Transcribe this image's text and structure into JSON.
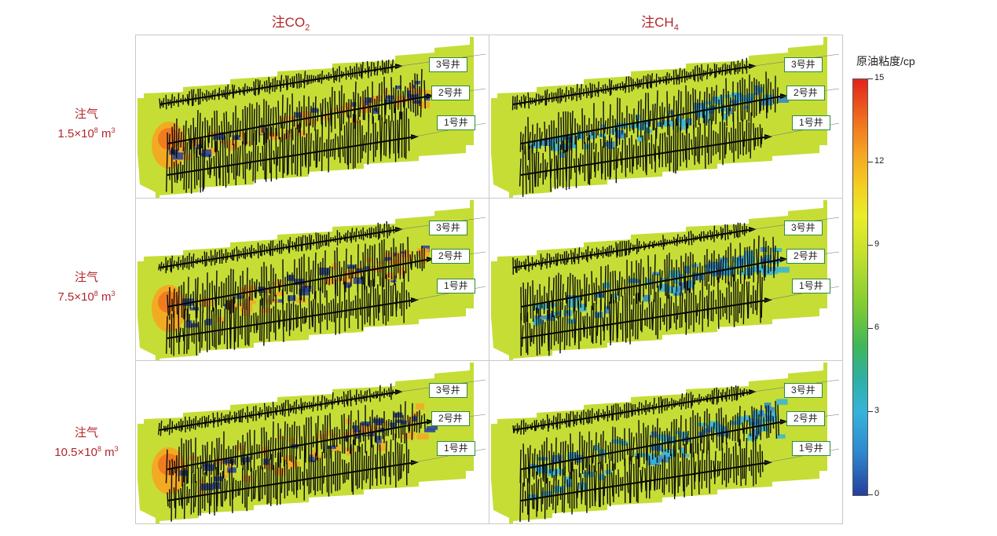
{
  "columns": [
    {
      "label": "注CO",
      "sub": "2"
    },
    {
      "label": "注CH",
      "sub": "4"
    }
  ],
  "rows": [
    {
      "line1": "注气",
      "coef": "1.5×10",
      "exp1": "8",
      "unit": " m",
      "exp2": "3"
    },
    {
      "line1": "注气",
      "coef": "7.5×10",
      "exp1": "8",
      "unit": " m",
      "exp2": "3"
    },
    {
      "line1": "注气",
      "coef": "10.5×10",
      "exp1": "8",
      "unit": " m",
      "exp2": "3"
    }
  ],
  "wells": [
    "3号井",
    "2号井",
    "1号井"
  ],
  "colorbar": {
    "title": "原油粘度/cp",
    "ticks": [
      "15",
      "12",
      "9",
      "6",
      "3",
      "0"
    ],
    "colors": [
      "#e1241c",
      "#f5a623",
      "#eaec27",
      "#7ccb33",
      "#2fb0a4",
      "#35b4d9",
      "#253f9c"
    ]
  },
  "colors": {
    "label_red": "#b3262b",
    "background_field": "#c6dd36",
    "well_box_border": "#2e8b3a"
  }
}
